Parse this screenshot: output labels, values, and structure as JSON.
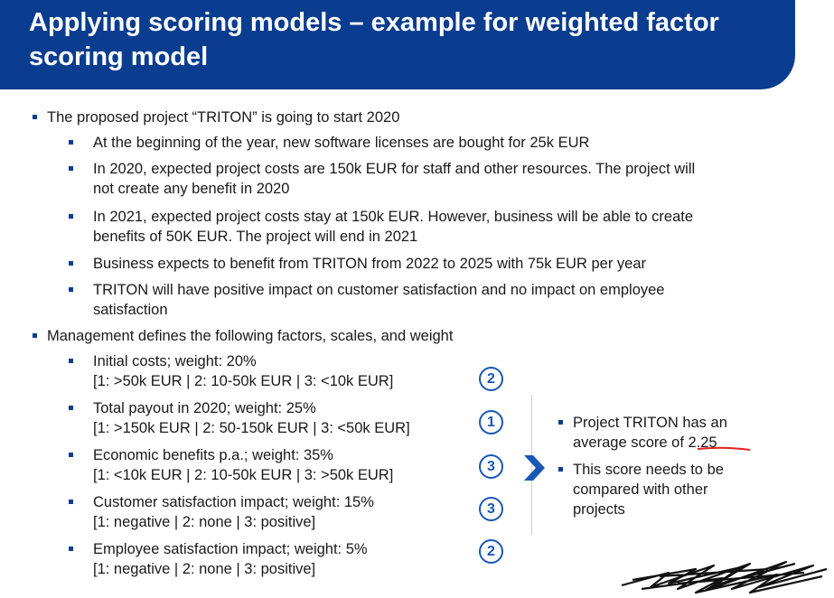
{
  "header": {
    "title": "Applying scoring models – example for weighted factor scoring model"
  },
  "bullets": {
    "intro": "The proposed project “TRITON” is going to start 2020",
    "sub": [
      [
        "At the beginning of the year, new software licenses are bought for 25k EUR"
      ],
      [
        "In 2020, expected project costs are 150k EUR for staff and other resources. The project will",
        "not create any benefit in 2020"
      ],
      [
        "In 2021, expected project costs stay at 150k EUR. However, business will be able to create",
        "benefits of 50K EUR. The project will end in 2021"
      ],
      [
        "Business expects to benefit from TRITON from 2022 to 2025 with 75k EUR per year"
      ],
      [
        "TRITON will have positive impact on customer satisfaction and no impact on employee",
        "satisfaction"
      ]
    ],
    "management": "Management defines the following factors, scales, and weight"
  },
  "factors": [
    {
      "name": "Initial costs; weight: 20%",
      "scale": "[1: >50k EUR | 2: 10-50k EUR | 3: <10k EUR]",
      "score": "2"
    },
    {
      "name": "Total payout in 2020; weight: 25%",
      "scale": "[1: >150k EUR | 2: 50-150k EUR | 3: <50k EUR]",
      "score": "1"
    },
    {
      "name": "Economic benefits p.a.; weight: 35%",
      "scale": "[1: <10k EUR | 2: 10-50k EUR | 3: >50k EUR]",
      "score": "3"
    },
    {
      "name": "Customer satisfaction impact; weight: 15%",
      "scale": "[1: negative | 2: none | 3: positive]",
      "score": "3"
    },
    {
      "name": "Employee satisfaction impact; weight: 5%",
      "scale": "[1: negative | 2: none | 3: positive]",
      "score": "2"
    }
  ],
  "result": {
    "line1": "Project TRITON has an",
    "line2_prefix": "average score of ",
    "score": "2.25",
    "note": [
      "This score needs to be",
      "compared with other",
      "projects"
    ]
  },
  "colors": {
    "header": "#0a3d8f",
    "accent": "#1a56b5",
    "underline": "#e0201c"
  }
}
